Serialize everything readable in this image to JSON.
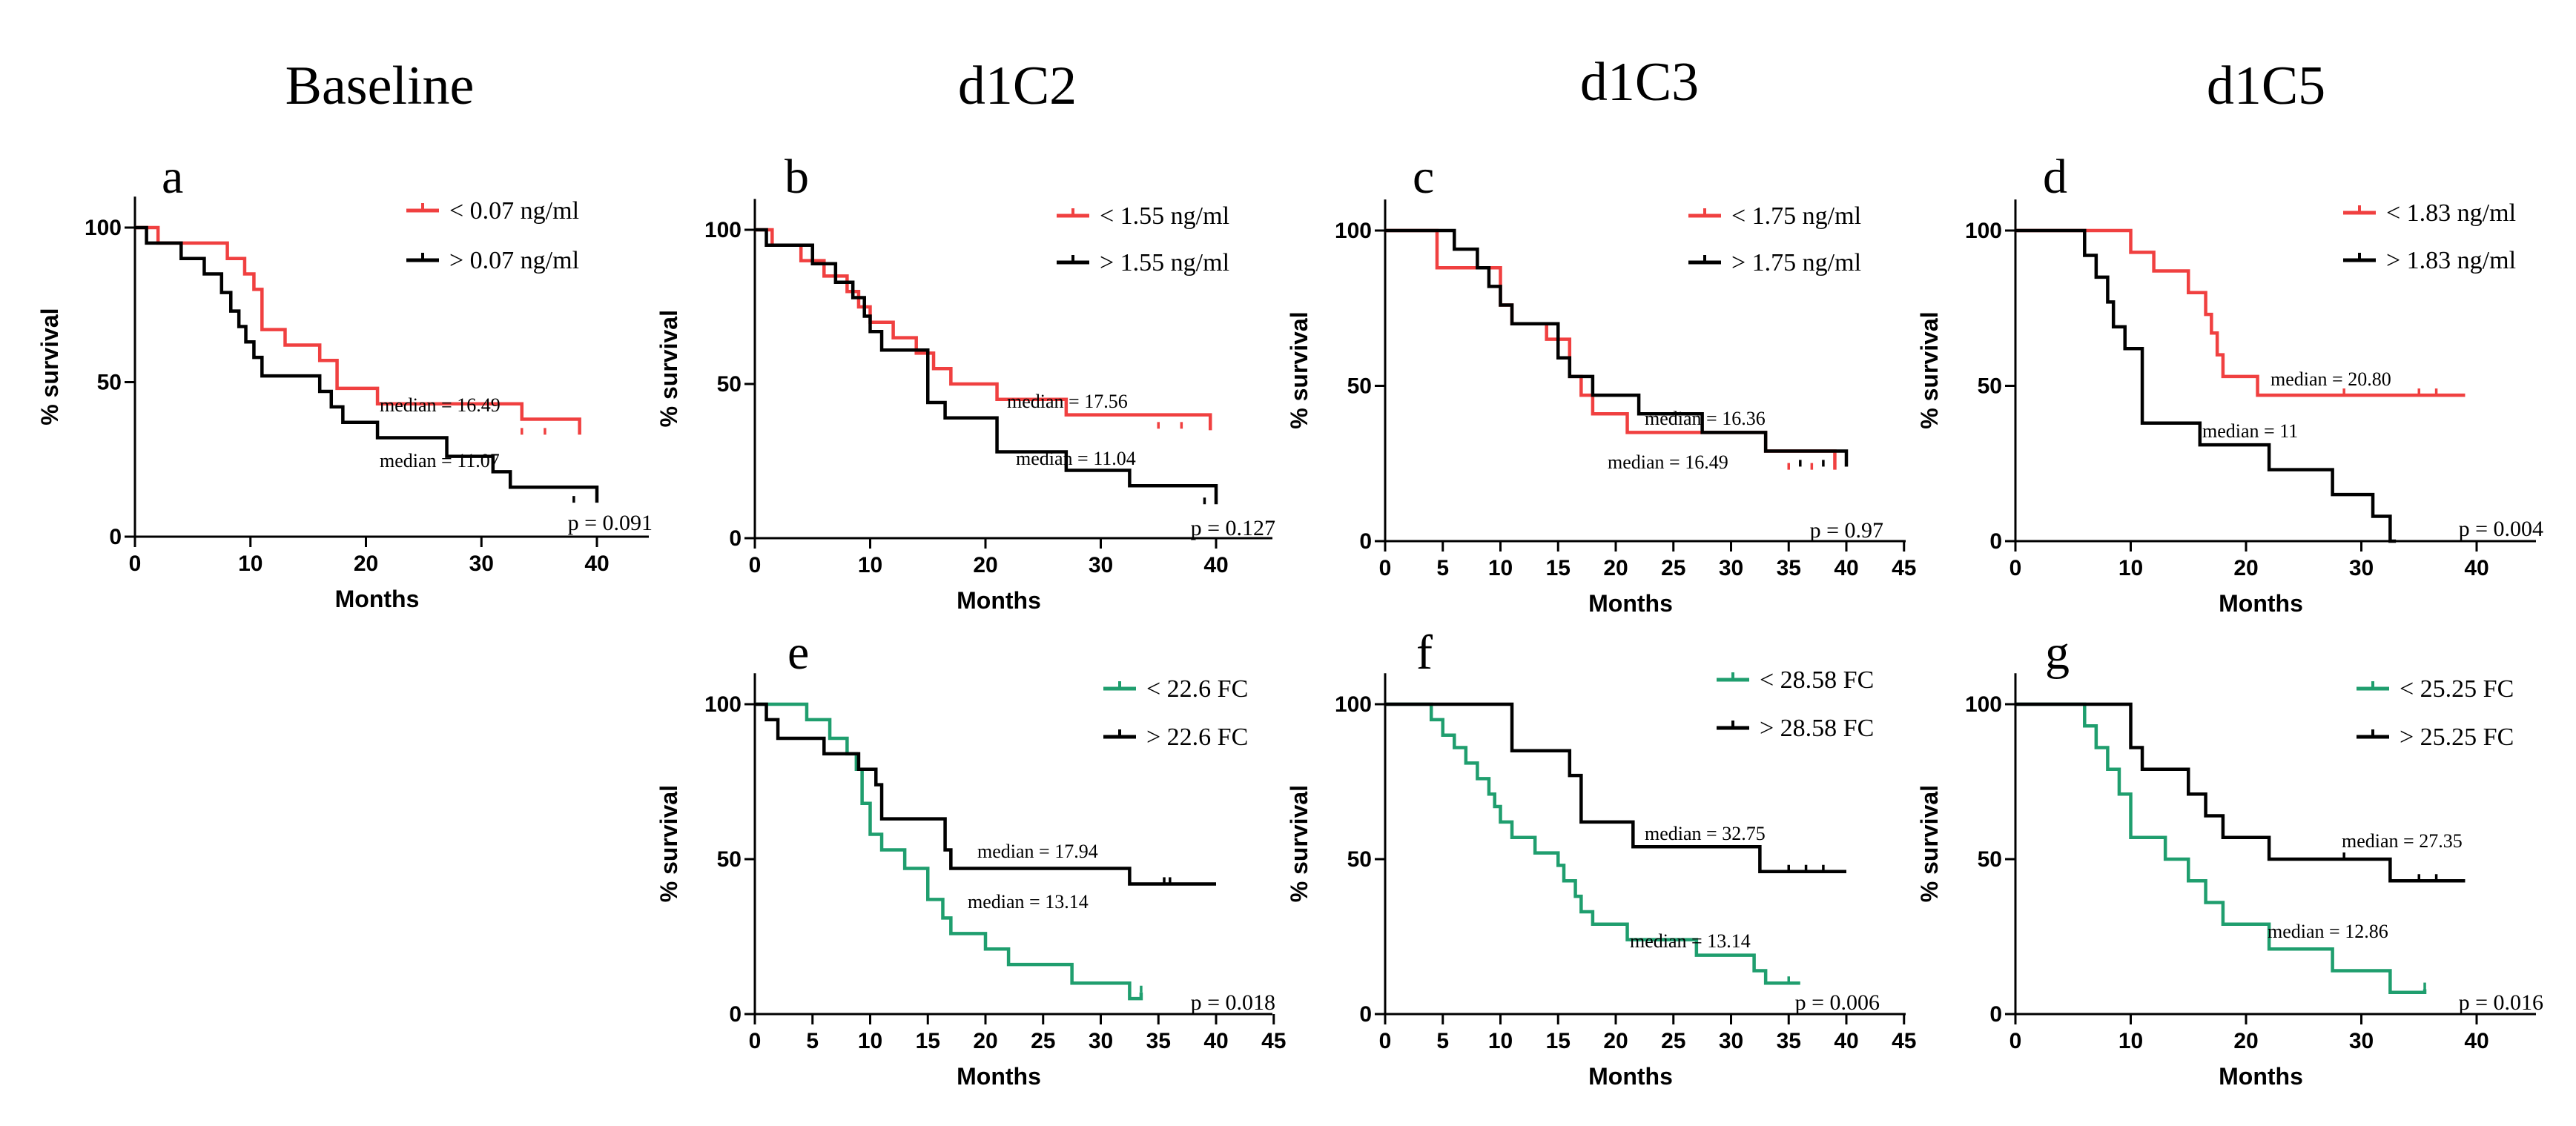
{
  "column_titles": [
    "Baseline",
    "d1C2",
    "d1C3",
    "d1C5"
  ],
  "chart_data": [
    {
      "id": "a",
      "panel_label": "a",
      "type": "line",
      "xlabel": "Months",
      "ylabel": "% survival",
      "xlim": [
        0,
        44
      ],
      "ylim": [
        0,
        110
      ],
      "xticks": [
        "0",
        "10",
        "20",
        "30",
        "40"
      ],
      "yticks": [
        "0",
        "50",
        "100"
      ],
      "series": [
        {
          "name": "< 0.07 ng/ml",
          "color": "#f04040",
          "x": [
            0,
            2,
            8,
            9.5,
            10.3,
            11,
            13,
            16,
            17.5,
            21,
            33.5,
            38.5
          ],
          "y": [
            100,
            95,
            90,
            85,
            80,
            67,
            62,
            57,
            48,
            43,
            38,
            33
          ],
          "censor": [
            [
              33.5,
              33
            ],
            [
              35.5,
              33
            ]
          ]
        },
        {
          "name": "> 0.07 ng/ml",
          "color": "#000000",
          "x": [
            0,
            1,
            4,
            6,
            7.5,
            8.3,
            9,
            9.6,
            10.3,
            11,
            16,
            17,
            18,
            21,
            27,
            31,
            32.5,
            40
          ],
          "y": [
            100,
            95,
            90,
            85,
            79,
            73,
            68,
            63,
            58,
            52,
            47,
            42,
            37,
            32,
            26,
            21,
            16,
            11
          ],
          "censor": [
            [
              38,
              11
            ]
          ]
        }
      ],
      "annotations": [
        "median = 16.49",
        "median = 11.07"
      ],
      "p_value": "p = 0.091"
    },
    {
      "id": "b",
      "panel_label": "b",
      "type": "line",
      "xlabel": "Months",
      "ylabel": "% survival",
      "xlim": [
        0,
        45
      ],
      "ylim": [
        0,
        110
      ],
      "xticks": [
        "0",
        "10",
        "20",
        "30",
        "40"
      ],
      "yticks": [
        "0",
        "50",
        "100"
      ],
      "series": [
        {
          "name": "< 1.55 ng/ml",
          "color": "#f04040",
          "x": [
            0,
            1.5,
            4,
            6,
            8,
            9,
            10,
            12,
            14,
            15.5,
            17,
            21,
            27,
            39.5
          ],
          "y": [
            100,
            95,
            90,
            85,
            80,
            75,
            70,
            65,
            60,
            55,
            50,
            45,
            40,
            35
          ],
          "censor": [
            [
              35,
              35.5
            ],
            [
              37,
              35.5
            ]
          ]
        },
        {
          "name": "> 1.55 ng/ml",
          "color": "#000000",
          "x": [
            0,
            1,
            5,
            7,
            8.5,
            9.5,
            10,
            11,
            15,
            16.5,
            21,
            27,
            32.5,
            40
          ],
          "y": [
            100,
            95,
            89,
            83,
            78,
            72,
            67,
            61,
            44,
            39,
            28,
            22,
            17,
            11
          ],
          "censor": [
            [
              39,
              11
            ]
          ]
        }
      ],
      "annotations": [
        "median = 17.56",
        "median = 11.04"
      ],
      "p_value": "p = 0.127"
    },
    {
      "id": "c",
      "panel_label": "c",
      "type": "line",
      "xlabel": "Months",
      "ylabel": "% survival",
      "xlim": [
        0,
        45
      ],
      "ylim": [
        0,
        110
      ],
      "xticks": [
        "0",
        "5",
        "10",
        "15",
        "20",
        "25",
        "30",
        "35",
        "40",
        "45"
      ],
      "yticks": [
        "0",
        "50",
        "100"
      ],
      "series": [
        {
          "name": "< 1.75 ng/ml",
          "color": "#f04040",
          "x": [
            0,
            4.5,
            10,
            11,
            14,
            16,
            17,
            18,
            21,
            33,
            39
          ],
          "y": [
            100,
            88,
            76,
            70,
            65,
            53,
            47,
            41,
            35,
            29,
            23
          ],
          "censor": [
            [
              35,
              23
            ],
            [
              37,
              23
            ]
          ]
        },
        {
          "name": "> 1.75 ng/ml",
          "color": "#000000",
          "x": [
            0,
            6,
            8,
            9,
            10,
            11,
            15,
            16,
            18,
            22,
            27.5,
            33,
            40
          ],
          "y": [
            100,
            94,
            88,
            82,
            76,
            70,
            59,
            53,
            47,
            41,
            35,
            29,
            24
          ],
          "censor": [
            [
              36,
              24
            ],
            [
              38,
              24
            ]
          ]
        }
      ],
      "annotations": [
        "median = 16.36",
        "median = 16.49"
      ],
      "p_value": "p = 0.97"
    },
    {
      "id": "d",
      "panel_label": "d",
      "type": "line",
      "xlabel": "Months",
      "ylabel": "% survival",
      "xlim": [
        0,
        45
      ],
      "ylim": [
        0,
        110
      ],
      "xticks": [
        "0",
        "10",
        "20",
        "30",
        "40"
      ],
      "yticks": [
        "0",
        "50",
        "100"
      ],
      "series": [
        {
          "name": "< 1.83 ng/ml",
          "color": "#f04040",
          "x": [
            0,
            10,
            12,
            15,
            16.5,
            17,
            17.5,
            18,
            21,
            39
          ],
          "y": [
            100,
            93,
            87,
            80,
            73,
            67,
            60,
            53,
            47,
            47
          ],
          "censor": [
            [
              28.5,
              47
            ],
            [
              35,
              47
            ],
            [
              36.5,
              47
            ]
          ]
        },
        {
          "name": "> 1.83 ng/ml",
          "color": "#000000",
          "x": [
            0,
            6,
            7,
            8,
            8.5,
            9.5,
            11,
            12,
            16,
            22,
            27.5,
            31,
            32.5,
            33
          ],
          "y": [
            100,
            92,
            85,
            77,
            69,
            62,
            38,
            38,
            31,
            23,
            15,
            8,
            0,
            0
          ],
          "censor": []
        }
      ],
      "annotations": [
        "median = 20.80",
        "median = 11"
      ],
      "p_value": "p = 0.004"
    },
    {
      "id": "e",
      "panel_label": "e",
      "type": "line",
      "xlabel": "Months",
      "ylabel": "% survival",
      "xlim": [
        0,
        45
      ],
      "ylim": [
        0,
        110
      ],
      "xticks": [
        "0",
        "5",
        "10",
        "15",
        "20",
        "25",
        "30",
        "35",
        "40",
        "45"
      ],
      "yticks": [
        "0",
        "50",
        "100"
      ],
      "series": [
        {
          "name": "< 22.6 FC",
          "color": "#1f9e6e",
          "x": [
            0,
            4.5,
            6.5,
            8,
            8.8,
            9.3,
            10,
            11,
            13,
            15,
            16.3,
            17,
            20,
            22,
            27.5,
            32.5,
            33.5
          ],
          "y": [
            100,
            95,
            89,
            84,
            79,
            68,
            58,
            53,
            47,
            37,
            31,
            26,
            21,
            16,
            10,
            5,
            7
          ],
          "censor": [
            [
              33.5,
              7
            ]
          ]
        },
        {
          "name": "> 22.6 FC",
          "color": "#000000",
          "x": [
            0,
            1,
            2,
            6,
            9,
            10.5,
            11,
            16.5,
            17,
            32.5,
            40
          ],
          "y": [
            100,
            95,
            89,
            84,
            79,
            74,
            63,
            53,
            47,
            42,
            42
          ],
          "censor": [
            [
              35.5,
              42
            ],
            [
              36,
              42
            ]
          ]
        }
      ],
      "annotations": [
        "median = 17.94",
        "median = 13.14"
      ],
      "p_value": "p = 0.018"
    },
    {
      "id": "f",
      "panel_label": "f",
      "type": "line",
      "xlabel": "Months",
      "ylabel": "% survival",
      "xlim": [
        0,
        45
      ],
      "ylim": [
        0,
        110
      ],
      "xticks": [
        "0",
        "5",
        "10",
        "15",
        "20",
        "25",
        "30",
        "35",
        "40",
        "45"
      ],
      "yticks": [
        "0",
        "50",
        "100"
      ],
      "series": [
        {
          "name": "< 28.58 FC",
          "color": "#1f9e6e",
          "x": [
            0,
            4,
            5,
            6,
            7,
            8,
            9,
            9.5,
            10,
            11,
            13,
            15,
            15.5,
            16.5,
            17,
            18,
            21,
            27,
            32,
            33,
            36
          ],
          "y": [
            100,
            95,
            90,
            86,
            81,
            76,
            71,
            67,
            62,
            57,
            52,
            48,
            43,
            38,
            33,
            29,
            24,
            19,
            14,
            10,
            10
          ],
          "censor": [
            [
              35,
              10
            ]
          ]
        },
        {
          "name": "> 28.58 FC",
          "color": "#000000",
          "x": [
            0,
            11,
            16,
            17,
            21.5,
            32.5,
            40
          ],
          "y": [
            100,
            85,
            77,
            62,
            54,
            46,
            46
          ],
          "censor": [
            [
              35,
              46
            ],
            [
              36.5,
              46
            ],
            [
              38,
              46
            ]
          ]
        }
      ],
      "annotations": [
        "median = 32.75",
        "median = 13.14"
      ],
      "p_value": "p = 0.006"
    },
    {
      "id": "g",
      "panel_label": "g",
      "type": "line",
      "xlabel": "Months",
      "ylabel": "% survival",
      "xlim": [
        0,
        45
      ],
      "ylim": [
        0,
        110
      ],
      "xticks": [
        "0",
        "10",
        "20",
        "30",
        "40"
      ],
      "yticks": [
        "0",
        "50",
        "100"
      ],
      "series": [
        {
          "name": "< 25.25 FC",
          "color": "#1f9e6e",
          "x": [
            0,
            6,
            7,
            8,
            9,
            10,
            13,
            15,
            16.5,
            18,
            22,
            27.5,
            32.5,
            35.5
          ],
          "y": [
            100,
            93,
            86,
            79,
            71,
            57,
            50,
            43,
            36,
            29,
            21,
            14,
            7,
            8
          ],
          "censor": [
            [
              35.5,
              8
            ]
          ]
        },
        {
          "name": "> 25.25 FC",
          "color": "#000000",
          "x": [
            0,
            10,
            11,
            15,
            16.5,
            18,
            22,
            32.5,
            39
          ],
          "y": [
            100,
            86,
            79,
            71,
            64,
            57,
            50,
            43,
            43
          ],
          "censor": [
            [
              28.5,
              50
            ],
            [
              35,
              43
            ],
            [
              36.5,
              43
            ]
          ]
        }
      ],
      "annotations": [
        "median = 27.35",
        "median = 12.86"
      ],
      "p_value": "p = 0.016"
    }
  ]
}
